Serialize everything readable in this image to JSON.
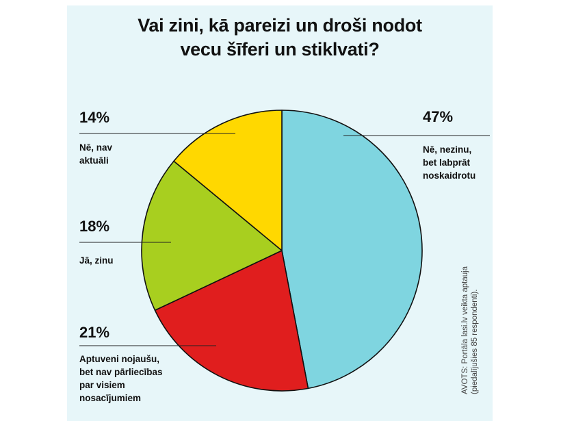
{
  "chart_data": {
    "type": "pie",
    "title_lines": [
      "Vai zini, kā pareizi un droši nodot",
      "vecu šīferi un stiklvati?"
    ],
    "slices": [
      {
        "value": 47,
        "pct_label": "47%",
        "label_lines": [
          "Nē, nezinu,",
          "bet labprāt",
          "noskaidrotu"
        ],
        "color": "#7fd5e0"
      },
      {
        "value": 21,
        "pct_label": "21%",
        "label_lines": [
          "Aptuveni nojaušu,",
          "bet nav pārliecības",
          "par visiem",
          "nosacījumiem"
        ],
        "color": "#e01e1e"
      },
      {
        "value": 18,
        "pct_label": "18%",
        "label_lines": [
          "Jā, zinu"
        ],
        "color": "#a8cf1f"
      },
      {
        "value": 14,
        "pct_label": "14%",
        "label_lines": [
          "Nē, nav",
          "aktuāli"
        ],
        "color": "#ffd800"
      }
    ],
    "start": "top",
    "direction": "clockwise",
    "legend": "callout labels"
  },
  "source_lines": [
    "AVOTS: Portāla lasi.lv veikta aptauja",
    "(piedalījušies 85 respondenti)."
  ]
}
